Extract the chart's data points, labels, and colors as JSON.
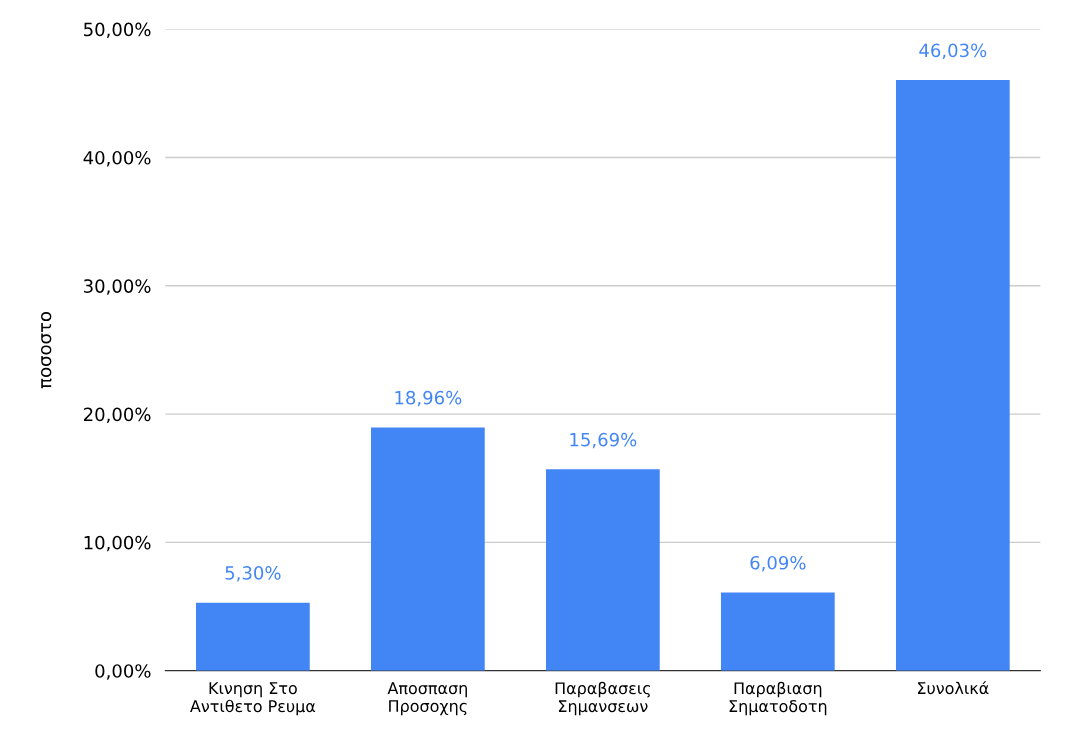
{
  "chart_data": {
    "type": "bar",
    "ylabel": "ποσοστο",
    "categories": [
      "Κινηση Στο\nΑντιθετο Ρευμα",
      "Αποσπαση\nΠροσοχης",
      "Παραβασεις\nΣημανσεων",
      "Παραβιαση\nΣηματοδοτη",
      "Συνολικά"
    ],
    "values": [
      5.3,
      18.96,
      15.69,
      6.09,
      46.03
    ],
    "value_labels": [
      "5,30%",
      "18,96%",
      "15,69%",
      "6,09%",
      "46,03%"
    ],
    "color": "#4285f4",
    "ylim": [
      0,
      50
    ],
    "yticks": [
      {
        "value": 0,
        "label": "0,00%"
      },
      {
        "value": 10,
        "label": "10,00%"
      },
      {
        "value": 20,
        "label": "20,00%"
      },
      {
        "value": 30,
        "label": "30,00%"
      },
      {
        "value": 40,
        "label": "40,00%"
      },
      {
        "value": 50,
        "label": "50,00%"
      }
    ],
    "grid": "y"
  }
}
